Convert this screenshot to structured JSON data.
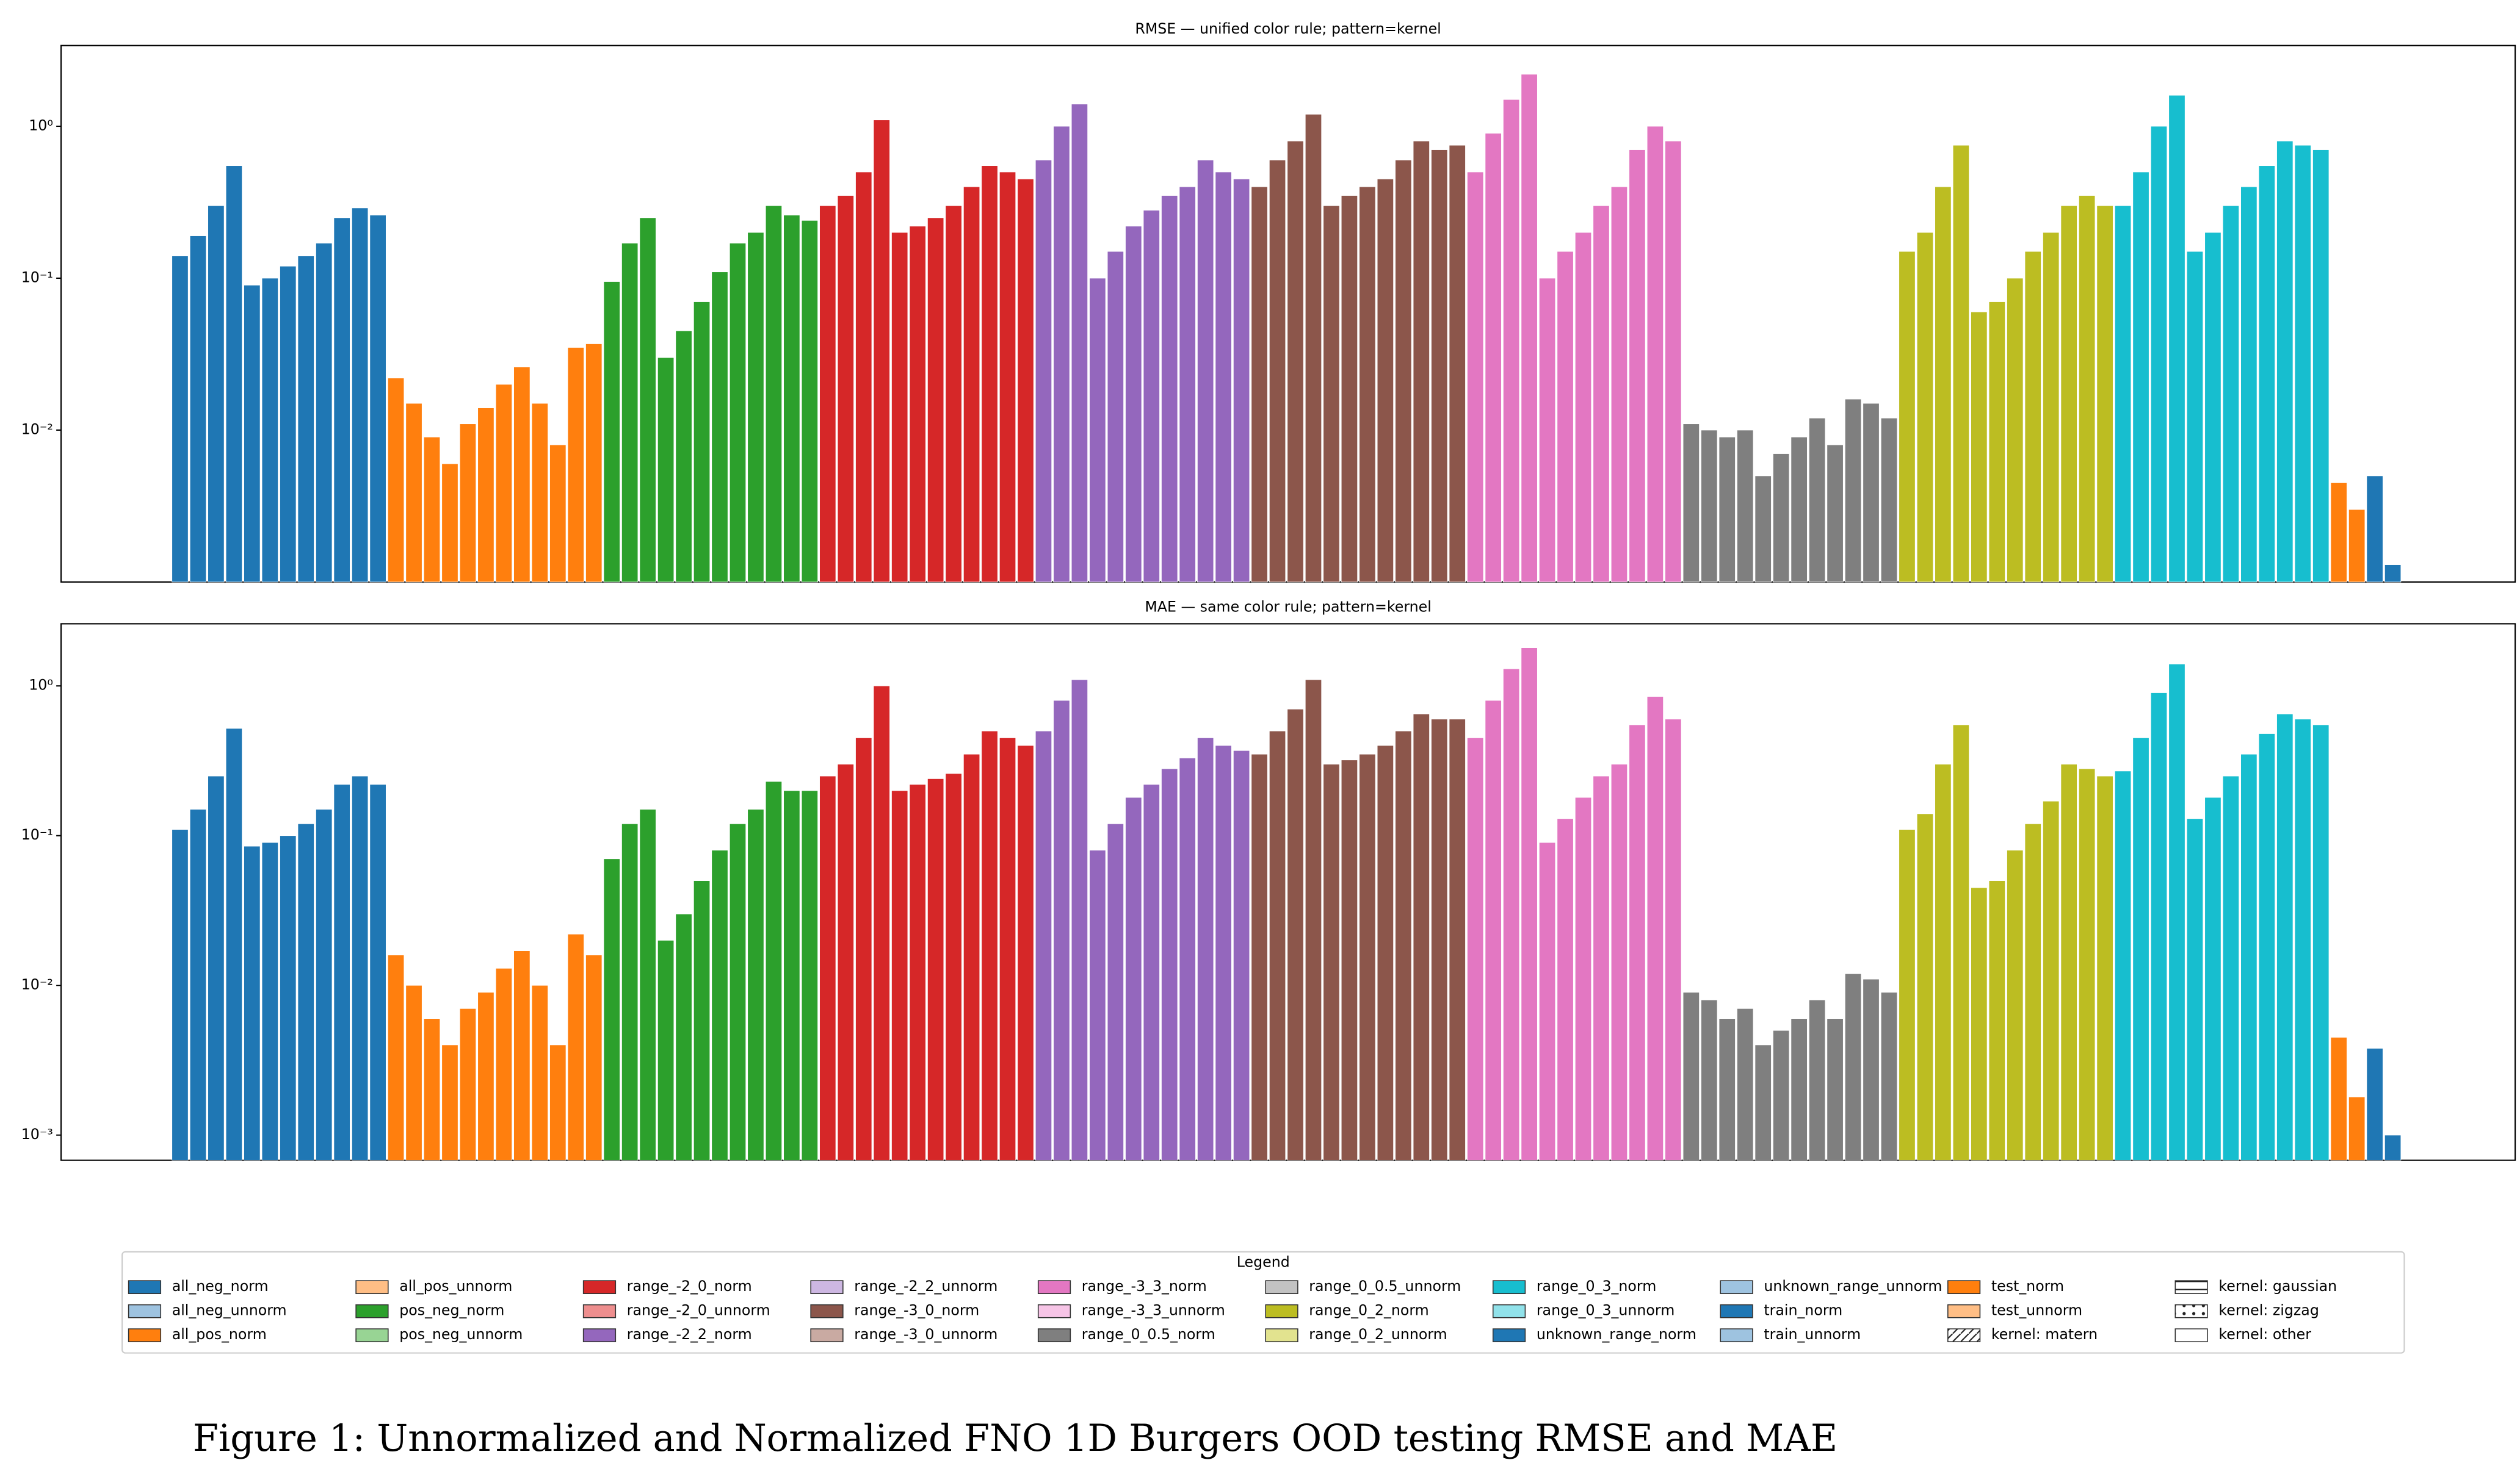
{
  "chart_data": [
    {
      "type": "bar",
      "title": "RMSE — unified color rule; pattern=kernel",
      "log_scale": true,
      "ylim": [
        0.001,
        3.4
      ],
      "yticks": [
        {
          "value": 0.01,
          "label": "10⁻²"
        },
        {
          "value": 0.1,
          "label": "10⁻¹"
        },
        {
          "value": 1,
          "label": "10⁰"
        }
      ],
      "series": [
        {
          "color": "#1f77b4",
          "values": [
            0.14,
            0.19,
            0.3,
            0.55,
            0.09,
            0.1,
            0.12,
            0.14,
            0.17,
            0.25,
            0.29,
            0.26
          ]
        },
        {
          "color": "#ff7f0e",
          "values": [
            0.022,
            0.015,
            0.009,
            0.006,
            0.011,
            0.014,
            0.02,
            0.026,
            0.015,
            0.008,
            0.035,
            0.037
          ]
        },
        {
          "color": "#2ca02c",
          "values": [
            0.095,
            0.17,
            0.25,
            0.03,
            0.045,
            0.07,
            0.11,
            0.17,
            0.2,
            0.3,
            0.26,
            0.24
          ]
        },
        {
          "color": "#d62728",
          "values": [
            0.3,
            0.35,
            0.5,
            1.1,
            0.2,
            0.22,
            0.25,
            0.3,
            0.4,
            0.55,
            0.5,
            0.45
          ]
        },
        {
          "color": "#9467bd",
          "values": [
            0.6,
            1.0,
            1.4,
            0.1,
            0.15,
            0.22,
            0.28,
            0.35,
            0.4,
            0.6,
            0.5,
            0.45
          ]
        },
        {
          "color": "#8c564b",
          "values": [
            0.4,
            0.6,
            0.8,
            1.2,
            0.3,
            0.35,
            0.4,
            0.45,
            0.6,
            0.8,
            0.7,
            0.75
          ]
        },
        {
          "color": "#e377c2",
          "values": [
            0.5,
            0.9,
            1.5,
            2.2,
            0.1,
            0.15,
            0.2,
            0.3,
            0.4,
            0.7,
            1.0,
            0.8
          ]
        },
        {
          "color": "#7f7f7f",
          "values": [
            0.011,
            0.01,
            0.009,
            0.01,
            0.005,
            0.007,
            0.009,
            0.012,
            0.008,
            0.016,
            0.015,
            0.012
          ]
        },
        {
          "color": "#bcbd22",
          "values": [
            0.15,
            0.2,
            0.4,
            0.75,
            0.06,
            0.07,
            0.1,
            0.15,
            0.2,
            0.3,
            0.35,
            0.3
          ]
        },
        {
          "color": "#17becf",
          "values": [
            0.3,
            0.5,
            1.0,
            1.6,
            0.15,
            0.2,
            0.3,
            0.4,
            0.55,
            0.8,
            0.75,
            0.7
          ]
        },
        {
          "color": "#ff7f0e",
          "values": [
            0.0045,
            0.003
          ]
        },
        {
          "color": "#1f77b4",
          "values": [
            0.005,
            0.0013
          ]
        }
      ]
    },
    {
      "type": "bar",
      "title": "MAE — same color rule; pattern=kernel",
      "log_scale": true,
      "ylim": [
        0.00068,
        2.6
      ],
      "yticks": [
        {
          "value": 0.001,
          "label": "10⁻³"
        },
        {
          "value": 0.01,
          "label": "10⁻²"
        },
        {
          "value": 0.1,
          "label": "10⁻¹"
        },
        {
          "value": 1,
          "label": "10⁰"
        }
      ],
      "series": [
        {
          "color": "#1f77b4",
          "values": [
            0.11,
            0.15,
            0.25,
            0.52,
            0.085,
            0.09,
            0.1,
            0.12,
            0.15,
            0.22,
            0.25,
            0.22
          ]
        },
        {
          "color": "#ff7f0e",
          "values": [
            0.016,
            0.01,
            0.006,
            0.004,
            0.007,
            0.009,
            0.013,
            0.017,
            0.01,
            0.004,
            0.022,
            0.016
          ]
        },
        {
          "color": "#2ca02c",
          "values": [
            0.07,
            0.12,
            0.15,
            0.02,
            0.03,
            0.05,
            0.08,
            0.12,
            0.15,
            0.23,
            0.2,
            0.2
          ]
        },
        {
          "color": "#d62728",
          "values": [
            0.25,
            0.3,
            0.45,
            1.0,
            0.2,
            0.22,
            0.24,
            0.26,
            0.35,
            0.5,
            0.45,
            0.4
          ]
        },
        {
          "color": "#9467bd",
          "values": [
            0.5,
            0.8,
            1.1,
            0.08,
            0.12,
            0.18,
            0.22,
            0.28,
            0.33,
            0.45,
            0.4,
            0.37
          ]
        },
        {
          "color": "#8c564b",
          "values": [
            0.35,
            0.5,
            0.7,
            1.1,
            0.3,
            0.32,
            0.35,
            0.4,
            0.5,
            0.65,
            0.6,
            0.6
          ]
        },
        {
          "color": "#e377c2",
          "values": [
            0.45,
            0.8,
            1.3,
            1.8,
            0.09,
            0.13,
            0.18,
            0.25,
            0.3,
            0.55,
            0.85,
            0.6
          ]
        },
        {
          "color": "#7f7f7f",
          "values": [
            0.009,
            0.008,
            0.006,
            0.007,
            0.004,
            0.005,
            0.006,
            0.008,
            0.006,
            0.012,
            0.011,
            0.009
          ]
        },
        {
          "color": "#bcbd22",
          "values": [
            0.11,
            0.14,
            0.3,
            0.55,
            0.045,
            0.05,
            0.08,
            0.12,
            0.17,
            0.3,
            0.28,
            0.25
          ]
        },
        {
          "color": "#17becf",
          "values": [
            0.27,
            0.45,
            0.9,
            1.4,
            0.13,
            0.18,
            0.25,
            0.35,
            0.48,
            0.65,
            0.6,
            0.55
          ]
        },
        {
          "color": "#ff7f0e",
          "values": [
            0.0045,
            0.0018
          ]
        },
        {
          "color": "#1f77b4",
          "values": [
            0.0038,
            0.001
          ]
        }
      ]
    }
  ],
  "legend": {
    "title": "Legend",
    "entries": [
      {
        "name": "all_neg_norm",
        "color": "#1f77b4"
      },
      {
        "name": "all_neg_unnorm",
        "color": "#9ec3e0"
      },
      {
        "name": "all_pos_norm",
        "color": "#ff7f0e"
      },
      {
        "name": "all_pos_unnorm",
        "color": "#ffbe85"
      },
      {
        "name": "pos_neg_norm",
        "color": "#2ca02c"
      },
      {
        "name": "pos_neg_unnorm",
        "color": "#98d494"
      },
      {
        "name": "range_-2_0_norm",
        "color": "#d62728"
      },
      {
        "name": "range_-2_0_unnorm",
        "color": "#ee8e8e"
      },
      {
        "name": "range_-2_2_norm",
        "color": "#9467bd"
      },
      {
        "name": "range_-2_2_unnorm",
        "color": "#cdb7e2"
      },
      {
        "name": "range_-3_0_norm",
        "color": "#8c564b"
      },
      {
        "name": "range_-3_0_unnorm",
        "color": "#c9aaa2"
      },
      {
        "name": "range_-3_3_norm",
        "color": "#e377c2"
      },
      {
        "name": "range_-3_3_unnorm",
        "color": "#f6c4e6"
      },
      {
        "name": "range_0_0.5_norm",
        "color": "#7f7f7f"
      },
      {
        "name": "range_0_0.5_unnorm",
        "color": "#c2c2c2"
      },
      {
        "name": "range_0_2_norm",
        "color": "#bcbd22"
      },
      {
        "name": "range_0_2_unnorm",
        "color": "#e2e38f"
      },
      {
        "name": "range_0_3_norm",
        "color": "#17becf"
      },
      {
        "name": "range_0_3_unnorm",
        "color": "#91e2ea"
      },
      {
        "name": "unknown_range_norm",
        "color": "#1f77b4"
      },
      {
        "name": "unknown_range_unnorm",
        "color": "#9ec3e0"
      },
      {
        "name": "train_norm",
        "color": "#1f77b4"
      },
      {
        "name": "train_unnorm",
        "color": "#9ec3e0"
      },
      {
        "name": "test_norm",
        "color": "#ff7f0e"
      },
      {
        "name": "test_unnorm",
        "color": "#ffbe85"
      },
      {
        "name": "kernel: matern",
        "color": "#ffffff",
        "pattern": "diagonal"
      },
      {
        "name": "kernel: gaussian",
        "color": "#ffffff",
        "pattern": "horizontal"
      },
      {
        "name": "kernel: zigzag",
        "color": "#ffffff",
        "pattern": "zigzag"
      },
      {
        "name": "kernel: other",
        "color": "#ffffff",
        "pattern": "none"
      }
    ]
  },
  "caption": "Figure 1: Unnormalized and Normalized FNO 1D Burgers OOD testing RMSE and MAE"
}
